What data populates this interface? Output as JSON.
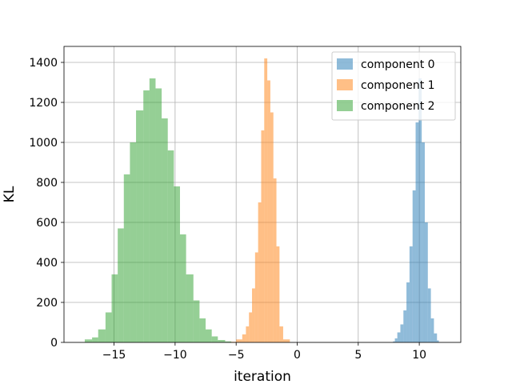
{
  "chart_data": {
    "type": "bar",
    "title": "",
    "xlabel": "iteration",
    "ylabel": "KL",
    "xlim": [
      -19.1,
      13.4
    ],
    "ylim": [
      0,
      1480
    ],
    "xticks": [
      -15,
      -10,
      -5,
      0,
      5,
      10
    ],
    "xtick_labels": [
      "−15",
      "−10",
      "−5",
      "0",
      "5",
      "10"
    ],
    "yticks": [
      0,
      200,
      400,
      600,
      800,
      1000,
      1200,
      1400
    ],
    "ytick_labels": [
      "0",
      "200",
      "400",
      "600",
      "800",
      "1000",
      "1200",
      "1400"
    ],
    "grid": true,
    "legend_position": "top-right",
    "series": [
      {
        "name": "component 0",
        "color": "#1f77b4",
        "alpha": 0.5,
        "bin_edges": [
          7.85,
          8.0,
          8.2,
          8.45,
          8.7,
          8.95,
          9.2,
          9.45,
          9.7,
          9.95,
          10.2,
          10.45,
          10.7,
          10.95,
          11.2,
          11.45,
          11.6
        ],
        "counts": [
          5,
          20,
          50,
          90,
          160,
          300,
          480,
          760,
          1100,
          1320,
          1000,
          600,
          270,
          120,
          45,
          10
        ]
      },
      {
        "name": "component 1",
        "color": "#ff7f0e",
        "alpha": 0.5,
        "bin_edges": [
          -5.5,
          -5.0,
          -4.5,
          -4.2,
          -3.95,
          -3.7,
          -3.45,
          -3.2,
          -2.95,
          -2.7,
          -2.45,
          -2.2,
          -1.95,
          -1.7,
          -1.45,
          -1.15,
          -0.6
        ],
        "counts": [
          3,
          15,
          40,
          80,
          150,
          270,
          450,
          700,
          1060,
          1420,
          1310,
          1150,
          820,
          480,
          80,
          15
        ]
      },
      {
        "name": "component 2",
        "color": "#2ca02c",
        "alpha": 0.5,
        "bin_edges": [
          -17.4,
          -16.8,
          -16.3,
          -15.7,
          -15.2,
          -14.7,
          -14.2,
          -13.7,
          -13.2,
          -12.6,
          -12.1,
          -11.6,
          -11.1,
          -10.6,
          -10.1,
          -9.6,
          -9.1,
          -8.5,
          -8.0,
          -7.5,
          -7.0,
          -6.5,
          -5.9,
          -5.4
        ],
        "counts": [
          15,
          25,
          65,
          150,
          340,
          570,
          840,
          1000,
          1160,
          1260,
          1320,
          1270,
          1120,
          960,
          780,
          540,
          340,
          210,
          120,
          65,
          30,
          12,
          5
        ]
      }
    ]
  }
}
